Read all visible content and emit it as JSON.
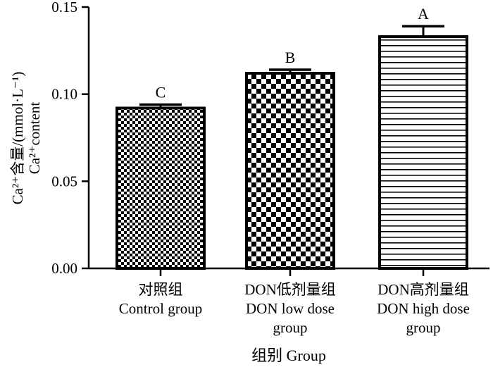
{
  "chart_data": {
    "type": "bar",
    "categories": [
      {
        "lines": [
          "对照组",
          "Control group"
        ]
      },
      {
        "lines": [
          "DON低剂量组",
          "DON low dose",
          "group"
        ]
      },
      {
        "lines": [
          "DON高剂量组",
          "DON high dose",
          "group"
        ]
      }
    ],
    "values": [
      0.092,
      0.112,
      0.133
    ],
    "errors": [
      0.002,
      0.002,
      0.006
    ],
    "significance": [
      "C",
      "B",
      "A"
    ],
    "patterns": [
      "fine-checker",
      "coarse-checker",
      "horizontal-lines"
    ],
    "ylim": [
      0,
      0.15
    ],
    "yticks": [
      "0.00",
      "0.05",
      "0.10",
      "0.15"
    ],
    "ytick_values": [
      0,
      0.05,
      0.1,
      0.15
    ],
    "ylabel_line1": "Ca²⁺含量/(mmol·L⁻¹)",
    "ylabel_line2": "Ca²⁺content",
    "xlabel": "组别 Group",
    "grid": false,
    "colors": {
      "bar_stroke": "#000000",
      "fill": "#000000",
      "background": "#ffffff"
    }
  }
}
